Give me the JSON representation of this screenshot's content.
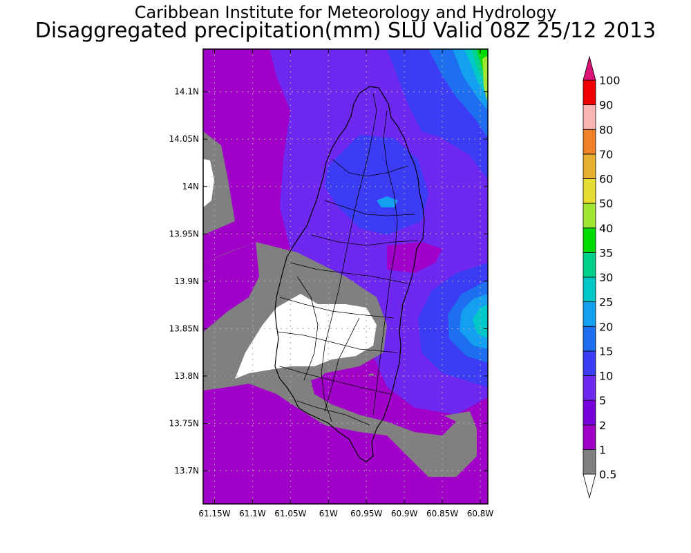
{
  "header": {
    "title": "Caribbean Institute for Meteorology and Hydrology",
    "subtitle": "Disaggregated precipitation(mm) SLU Valid 08Z 25/12 2013"
  },
  "map": {
    "lon_range": [
      -61.165,
      -60.79
    ],
    "lat_range": [
      13.665,
      14.145
    ],
    "lon_ticks": [
      {
        "value": -61.15,
        "label": "61.15W"
      },
      {
        "value": -61.1,
        "label": "61.1W"
      },
      {
        "value": -61.05,
        "label": "61.05W"
      },
      {
        "value": -61.0,
        "label": "61W"
      },
      {
        "value": -60.95,
        "label": "60.95W"
      },
      {
        "value": -60.9,
        "label": "60.9W"
      },
      {
        "value": -60.85,
        "label": "60.85W"
      },
      {
        "value": -60.8,
        "label": "60.8W"
      }
    ],
    "lat_ticks": [
      {
        "value": 14.1,
        "label": "14.1N"
      },
      {
        "value": 14.05,
        "label": "14.05N"
      },
      {
        "value": 14.0,
        "label": "14N"
      },
      {
        "value": 13.95,
        "label": "13.95N"
      },
      {
        "value": 13.9,
        "label": "13.9N"
      },
      {
        "value": 13.85,
        "label": "13.85N"
      },
      {
        "value": 13.8,
        "label": "13.8N"
      },
      {
        "value": 13.75,
        "label": "13.75N"
      },
      {
        "value": 13.7,
        "label": "13.7N"
      }
    ],
    "grid": true
  },
  "colorbar": {
    "levels": [
      "0.5",
      "1",
      "2",
      "5",
      "10",
      "15",
      "20",
      "25",
      "30",
      "35",
      "40",
      "50",
      "60",
      "70",
      "80",
      "90",
      "100"
    ],
    "colors": [
      "#808080",
      "#a000c8",
      "#7800dc",
      "#6e28f0",
      "#3c3cf5",
      "#1e6ef0",
      "#14a0f0",
      "#00c8c8",
      "#00d28c",
      "#00dc00",
      "#a0e632",
      "#e6dc32",
      "#e6af2d",
      "#f08228",
      "#fab4b4",
      "#f00000",
      "#ff3c3c"
    ],
    "under_color": "#ffffff",
    "over_color": "#dc1478"
  }
}
